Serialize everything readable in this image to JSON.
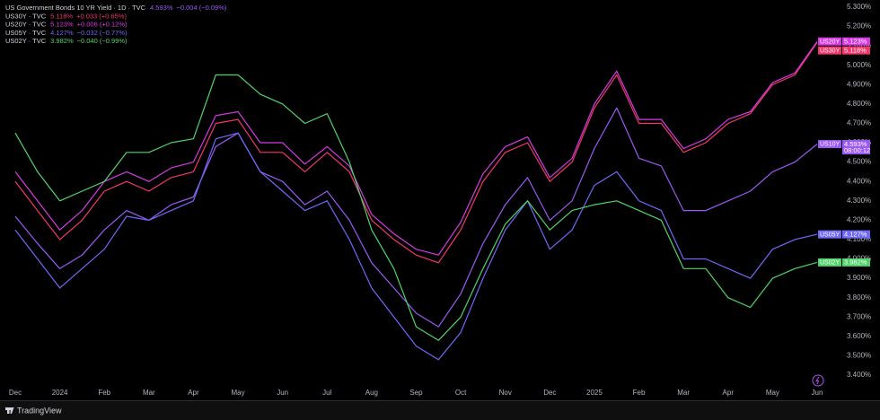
{
  "chart_data": {
    "type": "line",
    "grid": false,
    "categories": [
      "Dec",
      null,
      "2024",
      null,
      "Feb",
      null,
      "Mar",
      null,
      "Apr",
      null,
      "May",
      null,
      "Jun",
      null,
      "Jul",
      null,
      "Aug",
      null,
      "Sep",
      null,
      "Oct",
      null,
      "Nov",
      null,
      "Dec",
      null,
      "2025",
      null,
      "Feb",
      null,
      "Mar",
      null,
      "Apr",
      null,
      "May",
      null,
      "Jun"
    ],
    "ylim": [
      3.35,
      5.33
    ],
    "yticks": [
      {
        "value": 3.4,
        "label": "3.400%"
      },
      {
        "value": 3.5,
        "label": "3.500%"
      },
      {
        "value": 3.6,
        "label": "3.600%"
      },
      {
        "value": 3.7,
        "label": "3.700%"
      },
      {
        "value": 3.8,
        "label": "3.800%"
      },
      {
        "value": 3.9,
        "label": "3.900%"
      },
      {
        "value": 4.0,
        "label": "4.000%"
      },
      {
        "value": 4.1,
        "label": "4.100%"
      },
      {
        "value": 4.2,
        "label": "4.200%"
      },
      {
        "value": 4.3,
        "label": "4.300%"
      },
      {
        "value": 4.4,
        "label": "4.400%"
      },
      {
        "value": 4.5,
        "label": "4.500%"
      },
      {
        "value": 4.6,
        "label": "4.600%"
      },
      {
        "value": 4.7,
        "label": "4.700%"
      },
      {
        "value": 4.8,
        "label": "4.800%"
      },
      {
        "value": 4.9,
        "label": "4.900%"
      },
      {
        "value": 5.0,
        "label": "5.000%"
      },
      {
        "value": 5.1,
        "label": "5.100%"
      },
      {
        "value": 5.2,
        "label": "5.200%"
      },
      {
        "value": 5.3,
        "label": "5.300%"
      }
    ],
    "countdown": "08:00:12",
    "footer": "TradingView",
    "series": [
      {
        "name": "US Government Bonds 10 YR Yield · 1D · TVC",
        "short_name": "US10Y",
        "color": "#9b59f5",
        "last_label": "4.593%",
        "change": "−0.004 (−0.09%)",
        "values": [
          4.22,
          4.08,
          3.95,
          4.02,
          4.15,
          4.25,
          4.2,
          4.28,
          4.32,
          4.58,
          4.65,
          4.45,
          4.4,
          4.28,
          4.35,
          4.2,
          3.98,
          3.85,
          3.72,
          3.65,
          3.82,
          4.08,
          4.28,
          4.42,
          4.2,
          4.3,
          4.57,
          4.78,
          4.52,
          4.48,
          4.25,
          4.25,
          4.3,
          4.35,
          4.45,
          4.5,
          4.593
        ]
      },
      {
        "name": "US30Y · TVC",
        "short_name": "US30Y",
        "color": "#f2366b",
        "last_label": "5.118%",
        "change": "+0.033 (+0.65%)",
        "values": [
          4.4,
          4.25,
          4.1,
          4.2,
          4.35,
          4.4,
          4.35,
          4.42,
          4.45,
          4.7,
          4.72,
          4.55,
          4.55,
          4.45,
          4.55,
          4.45,
          4.2,
          4.1,
          4.02,
          3.98,
          4.15,
          4.4,
          4.55,
          4.6,
          4.4,
          4.5,
          4.78,
          4.95,
          4.7,
          4.7,
          4.55,
          4.6,
          4.7,
          4.75,
          4.9,
          4.95,
          5.118
        ]
      },
      {
        "name": "US20Y · TVC",
        "short_name": "US20Y",
        "color": "#d63ae3",
        "last_label": "5.123%",
        "change": "+0.006 (+0.12%)",
        "values": [
          4.45,
          4.3,
          4.15,
          4.25,
          4.4,
          4.45,
          4.4,
          4.47,
          4.5,
          4.74,
          4.76,
          4.6,
          4.6,
          4.49,
          4.58,
          4.48,
          4.23,
          4.13,
          4.05,
          4.02,
          4.19,
          4.44,
          4.58,
          4.63,
          4.42,
          4.52,
          4.8,
          4.97,
          4.72,
          4.72,
          4.57,
          4.62,
          4.72,
          4.76,
          4.91,
          4.96,
          5.123
        ]
      },
      {
        "name": "US05Y · TVC",
        "short_name": "US05Y",
        "color": "#7068f7",
        "last_label": "4.127%",
        "change": "−0.032 (−0.77%)",
        "values": [
          4.15,
          4.0,
          3.85,
          3.95,
          4.05,
          4.22,
          4.2,
          4.25,
          4.3,
          4.62,
          4.65,
          4.45,
          4.35,
          4.25,
          4.3,
          4.1,
          3.85,
          3.7,
          3.55,
          3.48,
          3.62,
          3.9,
          4.15,
          4.3,
          4.05,
          4.15,
          4.38,
          4.45,
          4.3,
          4.25,
          4.0,
          4.0,
          3.95,
          3.9,
          4.05,
          4.1,
          4.127
        ]
      },
      {
        "name": "US02Y · TVC",
        "short_name": "US02Y",
        "color": "#4fd36a",
        "last_label": "3.982%",
        "change": "−0.040 (−0.99%)",
        "values": [
          4.65,
          4.45,
          4.3,
          4.35,
          4.4,
          4.55,
          4.55,
          4.6,
          4.62,
          4.95,
          4.95,
          4.85,
          4.8,
          4.7,
          4.75,
          4.5,
          4.15,
          3.95,
          3.65,
          3.58,
          3.7,
          3.95,
          4.18,
          4.3,
          4.15,
          4.25,
          4.28,
          4.3,
          4.25,
          4.2,
          3.95,
          3.95,
          3.8,
          3.75,
          3.9,
          3.95,
          3.982
        ]
      }
    ]
  }
}
